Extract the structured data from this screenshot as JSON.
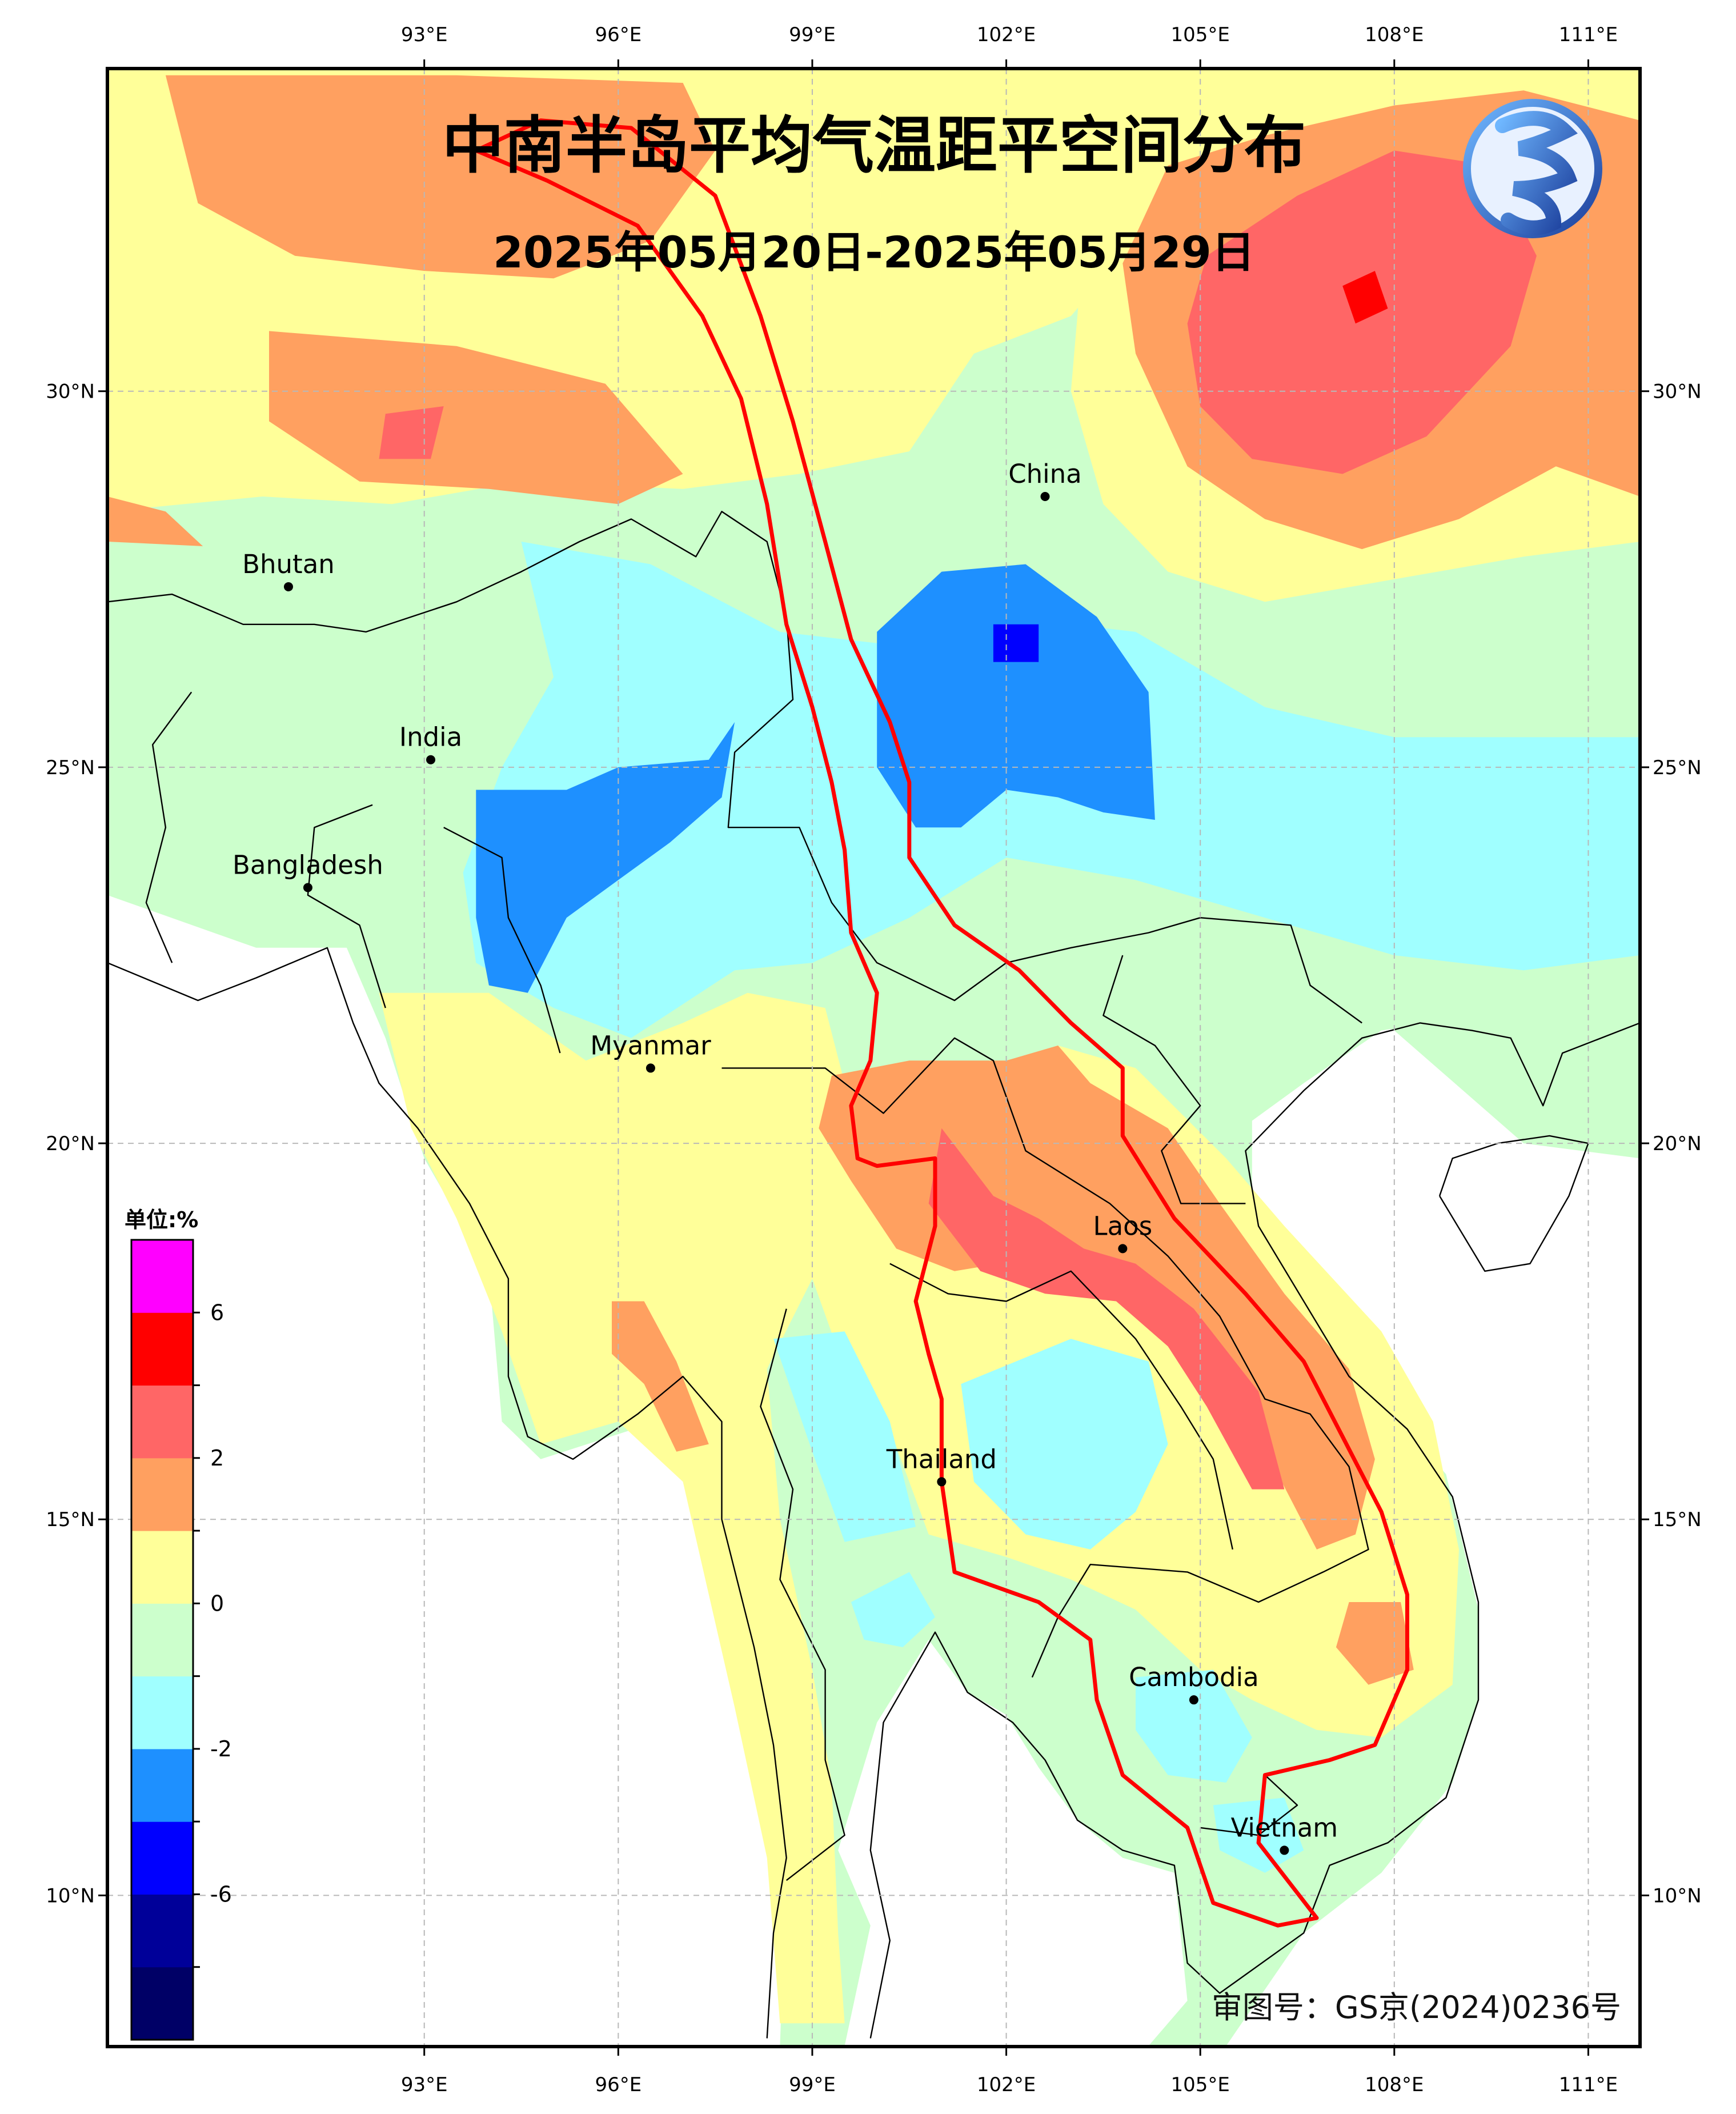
{
  "title": "中南半岛平均气温距平空间分布",
  "subtitle": "2025年05月20日-2025年05月29日",
  "approval_number": "审图号：GS京(2024)0236号",
  "logo_icon": "dragon-logo-icon",
  "axes": {
    "lon_ticks": [
      "93°E",
      "96°E",
      "99°E",
      "102°E",
      "105°E",
      "108°E",
      "111°E"
    ],
    "lat_ticks": [
      "30°N",
      "25°N",
      "20°N",
      "15°N",
      "10°N"
    ]
  },
  "places": [
    {
      "name": "China",
      "lon": 102.6,
      "lat": 28.6
    },
    {
      "name": "Bhutan",
      "lon": 90.9,
      "lat": 27.4
    },
    {
      "name": "India",
      "lon": 93.1,
      "lat": 25.1
    },
    {
      "name": "Bangladesh",
      "lon": 91.2,
      "lat": 23.4
    },
    {
      "name": "Myanmar",
      "lon": 96.5,
      "lat": 21.0
    },
    {
      "name": "Laos",
      "lon": 103.8,
      "lat": 18.6
    },
    {
      "name": "Thailand",
      "lon": 101.0,
      "lat": 15.5
    },
    {
      "name": "Cambodia",
      "lon": 104.9,
      "lat": 12.6
    },
    {
      "name": "Vietnam",
      "lon": 106.3,
      "lat": 10.6
    }
  ],
  "colorbar": {
    "unit": "单位:%",
    "tick_labels": [
      "6",
      "2",
      "0",
      "-2",
      "-6"
    ],
    "colors": [
      "#000066",
      "#000099",
      "#0000ff",
      "#1e90ff",
      "#a0ffff",
      "#ccffcc",
      "#ffff99",
      "#ffa060",
      "#ff6666",
      "#ff0000",
      "#ff00ff"
    ]
  },
  "mekong_basin": {
    "boundary_color": "#ff0000",
    "boundary": [
      [
        93.8,
        33.2
      ],
      [
        94.8,
        33.6
      ],
      [
        96.2,
        33.5
      ],
      [
        97.5,
        32.6
      ],
      [
        98.2,
        31.0
      ],
      [
        98.7,
        29.6
      ],
      [
        99.2,
        28.0
      ],
      [
        99.6,
        26.7
      ],
      [
        100.2,
        25.6
      ],
      [
        100.5,
        24.8
      ],
      [
        100.5,
        23.8
      ],
      [
        101.2,
        22.9
      ],
      [
        102.2,
        22.3
      ],
      [
        103.0,
        21.6
      ],
      [
        103.8,
        21.0
      ],
      [
        103.8,
        20.1
      ],
      [
        104.6,
        19.0
      ],
      [
        105.7,
        18.0
      ],
      [
        106.6,
        17.1
      ],
      [
        107.2,
        16.1
      ],
      [
        107.8,
        15.1
      ],
      [
        108.2,
        14.0
      ],
      [
        108.2,
        13.0
      ],
      [
        107.7,
        12.0
      ],
      [
        107.0,
        11.8
      ],
      [
        106.5,
        11.7
      ],
      [
        106.0,
        11.6
      ],
      [
        105.9,
        10.7
      ],
      [
        106.8,
        9.7
      ],
      [
        106.2,
        9.6
      ],
      [
        105.2,
        9.9
      ],
      [
        104.8,
        10.9
      ],
      [
        103.8,
        11.6
      ],
      [
        103.4,
        12.6
      ],
      [
        103.3,
        13.4
      ],
      [
        102.5,
        13.9
      ],
      [
        101.2,
        14.3
      ],
      [
        101.0,
        15.5
      ],
      [
        101.0,
        16.6
      ],
      [
        100.8,
        17.2
      ],
      [
        100.6,
        17.9
      ],
      [
        100.9,
        18.9
      ],
      [
        100.9,
        19.8
      ],
      [
        100.0,
        19.7
      ],
      [
        99.7,
        19.8
      ],
      [
        99.6,
        20.5
      ],
      [
        99.9,
        21.1
      ],
      [
        100.0,
        22.0
      ],
      [
        99.6,
        22.8
      ],
      [
        99.5,
        23.9
      ],
      [
        99.3,
        24.8
      ],
      [
        99.0,
        25.8
      ],
      [
        98.6,
        26.9
      ],
      [
        98.3,
        28.5
      ],
      [
        97.9,
        29.9
      ],
      [
        97.3,
        31.0
      ],
      [
        96.3,
        32.2
      ],
      [
        94.9,
        32.8
      ],
      [
        93.8,
        33.2
      ]
    ]
  }
}
